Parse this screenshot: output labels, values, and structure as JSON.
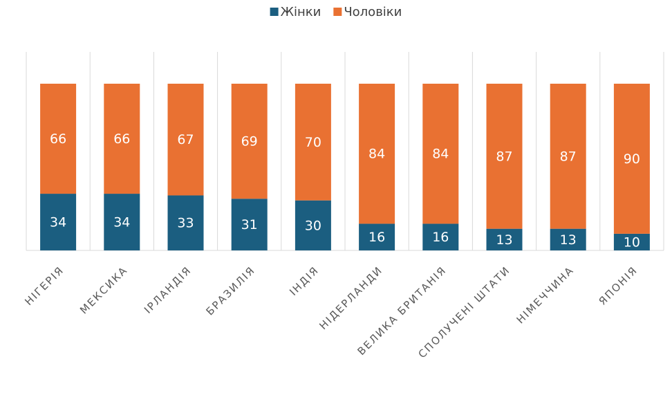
{
  "chart_data": {
    "type": "bar",
    "stacked": true,
    "categories": [
      "НІГЕРІЯ",
      "МЕКСИКА",
      "ІРЛАНДІЯ",
      "БРАЗИЛІЯ",
      "ІНДІЯ",
      "НІДЕРЛАНДИ",
      "ВЕЛИКА БРИТАНІЯ",
      "СПОЛУЧЕНІ ШТАТИ",
      "НІМЕЧЧИНА",
      "ЯПОНІЯ"
    ],
    "series": [
      {
        "name": "Жінки",
        "color": "#1b5e80",
        "values": [
          34,
          34,
          33,
          31,
          30,
          16,
          16,
          13,
          13,
          10
        ]
      },
      {
        "name": "Чоловіки",
        "color": "#e97132",
        "values": [
          66,
          66,
          67,
          69,
          70,
          84,
          84,
          87,
          87,
          90
        ]
      }
    ],
    "legend": "top"
  }
}
